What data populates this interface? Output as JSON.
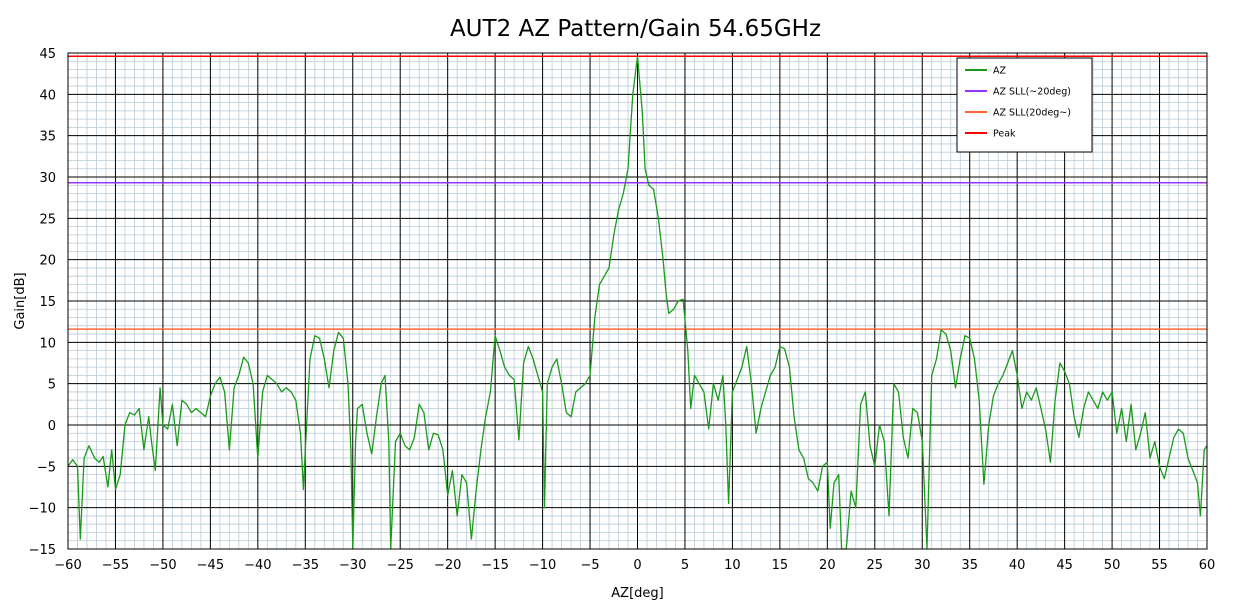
{
  "chart_data": {
    "type": "line",
    "title": "AUT2 AZ Pattern/Gain 54.65GHz",
    "xlabel": "AZ[deg]",
    "ylabel": "Gain[dB]",
    "xlim": [
      -60,
      60
    ],
    "ylim": [
      -15,
      45
    ],
    "x_major_step": 5,
    "y_major_step": 5,
    "x_minor_step": 1,
    "y_minor_step": 1,
    "grid": true,
    "legend_position": "top-right",
    "series": [
      {
        "name": "AZ",
        "color": "#1a9a1a",
        "points": [
          [
            -60,
            -5
          ],
          [
            -59.5,
            -4.2
          ],
          [
            -59,
            -5
          ],
          [
            -58.7,
            -13.8
          ],
          [
            -58.3,
            -4
          ],
          [
            -57.8,
            -2.5
          ],
          [
            -57.2,
            -4
          ],
          [
            -56.7,
            -4.5
          ],
          [
            -56.3,
            -3.8
          ],
          [
            -55.8,
            -7.5
          ],
          [
            -55.4,
            -3
          ],
          [
            -55,
            -7.8
          ],
          [
            -54.5,
            -6
          ],
          [
            -54,
            0
          ],
          [
            -53.5,
            1.5
          ],
          [
            -53,
            1.2
          ],
          [
            -52.5,
            2
          ],
          [
            -52,
            -3
          ],
          [
            -51.5,
            1
          ],
          [
            -51.2,
            -2
          ],
          [
            -50.8,
            -5.5
          ],
          [
            -50.3,
            4.5
          ],
          [
            -50,
            0
          ],
          [
            -49.5,
            -0.5
          ],
          [
            -49,
            2.5
          ],
          [
            -48.5,
            -2.5
          ],
          [
            -48,
            3
          ],
          [
            -47.5,
            2.5
          ],
          [
            -47,
            1.5
          ],
          [
            -46.5,
            2
          ],
          [
            -46,
            1.5
          ],
          [
            -45.5,
            1
          ],
          [
            -45,
            3.5
          ],
          [
            -44.5,
            5
          ],
          [
            -44,
            5.8
          ],
          [
            -43.5,
            4
          ],
          [
            -43,
            -3
          ],
          [
            -42.5,
            4.5
          ],
          [
            -42,
            6
          ],
          [
            -41.5,
            8.2
          ],
          [
            -41,
            7.5
          ],
          [
            -40.5,
            5
          ],
          [
            -40,
            -4
          ],
          [
            -39.5,
            4
          ],
          [
            -39,
            6
          ],
          [
            -38.5,
            5.5
          ],
          [
            -38,
            5
          ],
          [
            -37.5,
            4
          ],
          [
            -37,
            4.5
          ],
          [
            -36.5,
            4
          ],
          [
            -36,
            3
          ],
          [
            -35.5,
            -1
          ],
          [
            -35.2,
            -7.8
          ],
          [
            -35,
            -3
          ],
          [
            -34.5,
            8
          ],
          [
            -34,
            10.8
          ],
          [
            -33.5,
            10.5
          ],
          [
            -33,
            8
          ],
          [
            -32.5,
            4.5
          ],
          [
            -32,
            9
          ],
          [
            -31.5,
            11.2
          ],
          [
            -31,
            10.5
          ],
          [
            -30.5,
            5
          ],
          [
            -30.2,
            -3
          ],
          [
            -30,
            -15
          ],
          [
            -29.7,
            -2
          ],
          [
            -29.5,
            2
          ],
          [
            -29,
            2.5
          ],
          [
            -28.5,
            -1
          ],
          [
            -28,
            -3.5
          ],
          [
            -27.5,
            1
          ],
          [
            -27,
            5
          ],
          [
            -26.6,
            6
          ],
          [
            -26.2,
            -2
          ],
          [
            -26,
            -15
          ],
          [
            -25.5,
            -2
          ],
          [
            -25,
            -1
          ],
          [
            -24.5,
            -2.5
          ],
          [
            -24,
            -3
          ],
          [
            -23.5,
            -1.5
          ],
          [
            -23,
            2.5
          ],
          [
            -22.5,
            1.5
          ],
          [
            -22,
            -3
          ],
          [
            -21.5,
            -1
          ],
          [
            -21,
            -1.2
          ],
          [
            -20.5,
            -3
          ],
          [
            -20,
            -8.5
          ],
          [
            -19.5,
            -5.5
          ],
          [
            -19,
            -11
          ],
          [
            -18.5,
            -6
          ],
          [
            -18,
            -7
          ],
          [
            -17.5,
            -13.8
          ],
          [
            -17,
            -8
          ],
          [
            -16.5,
            -3
          ],
          [
            -16,
            1
          ],
          [
            -15.5,
            4
          ],
          [
            -15,
            10.8
          ],
          [
            -14.5,
            9
          ],
          [
            -14,
            7
          ],
          [
            -13.5,
            6
          ],
          [
            -13,
            5.5
          ],
          [
            -12.5,
            -1.8
          ],
          [
            -12,
            7.5
          ],
          [
            -11.5,
            9.5
          ],
          [
            -11,
            8
          ],
          [
            -10.5,
            6
          ],
          [
            -10,
            4
          ],
          [
            -9.8,
            -10
          ],
          [
            -9.5,
            5
          ],
          [
            -9,
            7
          ],
          [
            -8.5,
            8
          ],
          [
            -8,
            5
          ],
          [
            -7.5,
            1.5
          ],
          [
            -7,
            1
          ],
          [
            -6.5,
            4
          ],
          [
            -6,
            4.5
          ],
          [
            -5.5,
            5
          ],
          [
            -5,
            6
          ],
          [
            -4.5,
            13
          ],
          [
            -4,
            17
          ],
          [
            -3.5,
            18
          ],
          [
            -3,
            19
          ],
          [
            -2.5,
            23
          ],
          [
            -2,
            26
          ],
          [
            -1.5,
            28
          ],
          [
            -1,
            31
          ],
          [
            -0.5,
            40
          ],
          [
            0,
            44.6
          ],
          [
            0.5,
            38
          ],
          [
            0.8,
            31
          ],
          [
            1.2,
            29
          ],
          [
            1.7,
            28.5
          ],
          [
            2.2,
            25
          ],
          [
            2.7,
            20
          ],
          [
            3,
            16
          ],
          [
            3.3,
            13.5
          ],
          [
            3.8,
            14
          ],
          [
            4.3,
            15
          ],
          [
            4.8,
            15.2
          ],
          [
            5.3,
            9
          ],
          [
            5.6,
            2
          ],
          [
            6,
            6
          ],
          [
            6.5,
            5
          ],
          [
            7,
            4
          ],
          [
            7.5,
            -0.5
          ],
          [
            8,
            5
          ],
          [
            8.5,
            3
          ],
          [
            9,
            6
          ],
          [
            9.3,
            0
          ],
          [
            9.6,
            -9.5
          ],
          [
            10,
            4
          ],
          [
            10.5,
            5.5
          ],
          [
            11,
            7
          ],
          [
            11.5,
            9.5
          ],
          [
            12,
            5
          ],
          [
            12.5,
            -1
          ],
          [
            13,
            2
          ],
          [
            13.5,
            4
          ],
          [
            14,
            6
          ],
          [
            14.5,
            7
          ],
          [
            15,
            9.5
          ],
          [
            15.5,
            9.2
          ],
          [
            16,
            7
          ],
          [
            16.5,
            1
          ],
          [
            17,
            -3
          ],
          [
            17.5,
            -4
          ],
          [
            18,
            -6.5
          ],
          [
            18.5,
            -7
          ],
          [
            19,
            -8
          ],
          [
            19.5,
            -5
          ],
          [
            20,
            -4.5
          ],
          [
            20.3,
            -12.5
          ],
          [
            20.7,
            -7
          ],
          [
            21.2,
            -6
          ],
          [
            21.5,
            -15
          ],
          [
            22,
            -15
          ],
          [
            22.5,
            -8
          ],
          [
            23,
            -10
          ],
          [
            23.5,
            2.5
          ],
          [
            24,
            4
          ],
          [
            24.5,
            -2.5
          ],
          [
            25,
            -5
          ],
          [
            25.5,
            0
          ],
          [
            26,
            -2
          ],
          [
            26.5,
            -11
          ],
          [
            27,
            5
          ],
          [
            27.5,
            4
          ],
          [
            28,
            -1.5
          ],
          [
            28.5,
            -4
          ],
          [
            29,
            2
          ],
          [
            29.5,
            1.5
          ],
          [
            30,
            -2
          ],
          [
            30.5,
            -15
          ],
          [
            31,
            6
          ],
          [
            31.5,
            8
          ],
          [
            32,
            11.5
          ],
          [
            32.5,
            11
          ],
          [
            33,
            9
          ],
          [
            33.5,
            4.5
          ],
          [
            34,
            8
          ],
          [
            34.5,
            10.8
          ],
          [
            35,
            10.5
          ],
          [
            35.5,
            8
          ],
          [
            36,
            3
          ],
          [
            36.5,
            -7.2
          ],
          [
            37,
            0
          ],
          [
            37.5,
            3.5
          ],
          [
            38,
            5
          ],
          [
            38.5,
            6
          ],
          [
            39,
            7.5
          ],
          [
            39.5,
            9
          ],
          [
            40,
            6
          ],
          [
            40.5,
            2
          ],
          [
            41,
            4
          ],
          [
            41.5,
            3
          ],
          [
            42,
            4.5
          ],
          [
            42.5,
            2
          ],
          [
            43,
            -0.5
          ],
          [
            43.5,
            -4.5
          ],
          [
            44,
            3
          ],
          [
            44.5,
            7.5
          ],
          [
            45,
            6.5
          ],
          [
            45.5,
            5
          ],
          [
            46,
            1
          ],
          [
            46.5,
            -1.5
          ],
          [
            47,
            2
          ],
          [
            47.5,
            4
          ],
          [
            48,
            3
          ],
          [
            48.5,
            2
          ],
          [
            49,
            4
          ],
          [
            49.5,
            3
          ],
          [
            50,
            4
          ],
          [
            50.5,
            -1
          ],
          [
            51,
            2
          ],
          [
            51.5,
            -2
          ],
          [
            52,
            2.5
          ],
          [
            52.5,
            -3
          ],
          [
            53,
            -1
          ],
          [
            53.5,
            1.5
          ],
          [
            54,
            -4
          ],
          [
            54.5,
            -2
          ],
          [
            55,
            -5
          ],
          [
            55.5,
            -6.5
          ],
          [
            56,
            -4
          ],
          [
            56.5,
            -1.5
          ],
          [
            57,
            -0.5
          ],
          [
            57.5,
            -1
          ],
          [
            58,
            -4
          ],
          [
            58.5,
            -5.5
          ],
          [
            59,
            -7
          ],
          [
            59.3,
            -11
          ],
          [
            59.7,
            -3
          ],
          [
            60,
            -2.5
          ]
        ]
      },
      {
        "name": "AZ SLL(~20deg)",
        "color": "#9933ff",
        "value": 29.3
      },
      {
        "name": "AZ SLL(20deg~)",
        "color": "#ff6633",
        "value": 11.6
      },
      {
        "name": "Peak",
        "color": "#ff0000",
        "value": 44.6
      }
    ]
  }
}
